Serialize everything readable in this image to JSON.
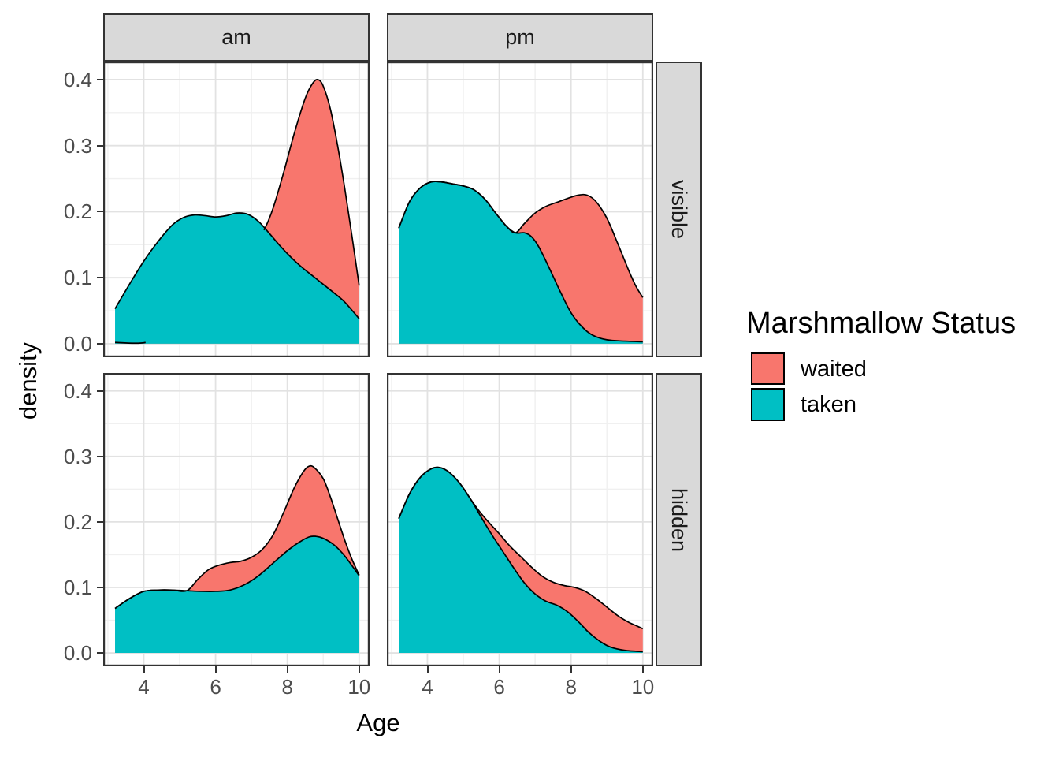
{
  "figure": {
    "x_axis": {
      "title": "Age",
      "tick_labels": [
        "4",
        "6",
        "8",
        "10"
      ],
      "tick_values": [
        4,
        6,
        8,
        10
      ],
      "minor_values": [
        3,
        5,
        7,
        9
      ],
      "domain": [
        2.87,
        10.29
      ]
    },
    "y_axis": {
      "title": "density",
      "tick_labels": [
        "0.0",
        "0.1",
        "0.2",
        "0.3",
        "0.4"
      ],
      "tick_values": [
        0,
        0.1,
        0.2,
        0.3,
        0.4
      ],
      "minor_values": [
        0.05,
        0.15,
        0.25,
        0.35
      ],
      "domain": [
        -0.0204,
        0.4274
      ]
    },
    "facets": {
      "cols": [
        "am",
        "pm"
      ],
      "rows": [
        "visible",
        "hidden"
      ]
    },
    "legend": {
      "title": "Marshmallow Status",
      "items": [
        {
          "label": "waited",
          "color": "#F8766D"
        },
        {
          "label": "taken",
          "color": "#00BFC4"
        }
      ]
    },
    "colors": {
      "waited": "#F8766D",
      "taken": "#00BFC4",
      "panel_border": "#333333",
      "grid_major": "#E2E2E2",
      "grid_minor": "#F0F0F0",
      "strip_fill": "#D9D9D9",
      "curve_stroke": "#000000",
      "tick_text": "#4D4D4D"
    }
  },
  "chart_data": [
    {
      "type": "density-area",
      "facet_col": "am",
      "facet_row": "visible",
      "series": [
        {
          "name": "waited",
          "points": [
            [
              3.2,
              0.002
            ],
            [
              4.05,
              0.002
            ],
            [
              4.6,
              0.02
            ],
            [
              5.2,
              0.052
            ],
            [
              5.8,
              0.085
            ],
            [
              6.4,
              0.118
            ],
            [
              6.9,
              0.145
            ],
            [
              7.2,
              0.163
            ],
            [
              7.35,
              0.172
            ],
            [
              7.6,
              0.205
            ],
            [
              7.9,
              0.26
            ],
            [
              8.2,
              0.32
            ],
            [
              8.5,
              0.372
            ],
            [
              8.7,
              0.394
            ],
            [
              8.85,
              0.4
            ],
            [
              9.0,
              0.39
            ],
            [
              9.2,
              0.355
            ],
            [
              9.4,
              0.3
            ],
            [
              9.6,
              0.235
            ],
            [
              9.8,
              0.163
            ],
            [
              10,
              0.088
            ]
          ]
        },
        {
          "name": "taken",
          "points": [
            [
              3.2,
              0.053
            ],
            [
              3.6,
              0.09
            ],
            [
              4.0,
              0.125
            ],
            [
              4.4,
              0.155
            ],
            [
              4.8,
              0.18
            ],
            [
              5.1,
              0.191
            ],
            [
              5.4,
              0.195
            ],
            [
              5.7,
              0.194
            ],
            [
              6.0,
              0.192
            ],
            [
              6.3,
              0.194
            ],
            [
              6.6,
              0.198
            ],
            [
              6.9,
              0.196
            ],
            [
              7.2,
              0.185
            ],
            [
              7.5,
              0.167
            ],
            [
              7.8,
              0.148
            ],
            [
              8.1,
              0.131
            ],
            [
              8.4,
              0.116
            ],
            [
              8.7,
              0.103
            ],
            [
              9.0,
              0.09
            ],
            [
              9.3,
              0.077
            ],
            [
              9.6,
              0.063
            ],
            [
              10,
              0.038
            ]
          ]
        }
      ]
    },
    {
      "type": "density-area",
      "facet_col": "pm",
      "facet_row": "visible",
      "series": [
        {
          "name": "waited",
          "points": [
            [
              3.2,
              0.175
            ],
            [
              3.5,
              0.215
            ],
            [
              3.8,
              0.236
            ],
            [
              4.1,
              0.245
            ],
            [
              4.4,
              0.245
            ],
            [
              4.7,
              0.242
            ],
            [
              5.0,
              0.239
            ],
            [
              5.3,
              0.233
            ],
            [
              5.6,
              0.219
            ],
            [
              5.9,
              0.198
            ],
            [
              6.2,
              0.178
            ],
            [
              6.45,
              0.168
            ],
            [
              6.7,
              0.182
            ],
            [
              7.0,
              0.198
            ],
            [
              7.3,
              0.208
            ],
            [
              7.6,
              0.214
            ],
            [
              7.9,
              0.22
            ],
            [
              8.2,
              0.225
            ],
            [
              8.45,
              0.225
            ],
            [
              8.7,
              0.215
            ],
            [
              9.0,
              0.19
            ],
            [
              9.3,
              0.152
            ],
            [
              9.6,
              0.112
            ],
            [
              9.8,
              0.088
            ],
            [
              10,
              0.07
            ]
          ]
        },
        {
          "name": "taken",
          "points": [
            [
              3.2,
              0.175
            ],
            [
              3.5,
              0.215
            ],
            [
              3.8,
              0.236
            ],
            [
              4.1,
              0.245
            ],
            [
              4.4,
              0.245
            ],
            [
              4.7,
              0.242
            ],
            [
              5.0,
              0.239
            ],
            [
              5.3,
              0.233
            ],
            [
              5.6,
              0.219
            ],
            [
              5.9,
              0.198
            ],
            [
              6.2,
              0.178
            ],
            [
              6.45,
              0.168
            ],
            [
              6.7,
              0.168
            ],
            [
              6.9,
              0.162
            ],
            [
              7.1,
              0.147
            ],
            [
              7.4,
              0.114
            ],
            [
              7.7,
              0.079
            ],
            [
              8.0,
              0.047
            ],
            [
              8.3,
              0.026
            ],
            [
              8.6,
              0.013
            ],
            [
              9.0,
              0.006
            ],
            [
              9.5,
              0.004
            ],
            [
              10,
              0.003
            ]
          ]
        }
      ]
    },
    {
      "type": "density-area",
      "facet_col": "am",
      "facet_row": "hidden",
      "series": [
        {
          "name": "waited",
          "points": [
            [
              3.2,
              0.068
            ],
            [
              3.6,
              0.083
            ],
            [
              4.0,
              0.094
            ],
            [
              4.4,
              0.096
            ],
            [
              4.8,
              0.096
            ],
            [
              5.2,
              0.095
            ],
            [
              5.5,
              0.112
            ],
            [
              5.8,
              0.127
            ],
            [
              6.1,
              0.134
            ],
            [
              6.4,
              0.138
            ],
            [
              6.7,
              0.14
            ],
            [
              7.0,
              0.146
            ],
            [
              7.3,
              0.158
            ],
            [
              7.6,
              0.18
            ],
            [
              7.9,
              0.215
            ],
            [
              8.2,
              0.253
            ],
            [
              8.45,
              0.277
            ],
            [
              8.6,
              0.285
            ],
            [
              8.75,
              0.283
            ],
            [
              9.0,
              0.266
            ],
            [
              9.2,
              0.238
            ],
            [
              9.4,
              0.205
            ],
            [
              9.6,
              0.172
            ],
            [
              9.8,
              0.143
            ],
            [
              10,
              0.119
            ]
          ]
        },
        {
          "name": "taken",
          "points": [
            [
              3.2,
              0.068
            ],
            [
              3.6,
              0.083
            ],
            [
              4.0,
              0.094
            ],
            [
              4.4,
              0.096
            ],
            [
              4.8,
              0.096
            ],
            [
              5.2,
              0.095
            ],
            [
              5.6,
              0.094
            ],
            [
              6.0,
              0.094
            ],
            [
              6.4,
              0.096
            ],
            [
              6.8,
              0.104
            ],
            [
              7.2,
              0.118
            ],
            [
              7.6,
              0.137
            ],
            [
              8.0,
              0.156
            ],
            [
              8.3,
              0.168
            ],
            [
              8.6,
              0.177
            ],
            [
              8.8,
              0.178
            ],
            [
              9.0,
              0.175
            ],
            [
              9.3,
              0.165
            ],
            [
              9.6,
              0.148
            ],
            [
              10,
              0.118
            ]
          ]
        }
      ]
    },
    {
      "type": "density-area",
      "facet_col": "pm",
      "facet_row": "hidden",
      "series": [
        {
          "name": "waited",
          "points": [
            [
              3.2,
              0.205
            ],
            [
              3.5,
              0.243
            ],
            [
              3.8,
              0.268
            ],
            [
              4.1,
              0.281
            ],
            [
              4.35,
              0.283
            ],
            [
              4.6,
              0.276
            ],
            [
              4.9,
              0.259
            ],
            [
              5.2,
              0.235
            ],
            [
              5.45,
              0.216
            ],
            [
              5.7,
              0.2
            ],
            [
              6.0,
              0.182
            ],
            [
              6.3,
              0.163
            ],
            [
              6.6,
              0.147
            ],
            [
              6.9,
              0.131
            ],
            [
              7.2,
              0.117
            ],
            [
              7.5,
              0.108
            ],
            [
              7.8,
              0.103
            ],
            [
              8.1,
              0.1
            ],
            [
              8.4,
              0.094
            ],
            [
              8.7,
              0.083
            ],
            [
              9.0,
              0.07
            ],
            [
              9.3,
              0.057
            ],
            [
              9.6,
              0.047
            ],
            [
              9.8,
              0.042
            ],
            [
              10,
              0.037
            ]
          ]
        },
        {
          "name": "taken",
          "points": [
            [
              3.2,
              0.205
            ],
            [
              3.5,
              0.243
            ],
            [
              3.8,
              0.268
            ],
            [
              4.1,
              0.281
            ],
            [
              4.35,
              0.283
            ],
            [
              4.6,
              0.276
            ],
            [
              4.9,
              0.259
            ],
            [
              5.2,
              0.235
            ],
            [
              5.5,
              0.207
            ],
            [
              5.8,
              0.18
            ],
            [
              6.1,
              0.155
            ],
            [
              6.4,
              0.13
            ],
            [
              6.7,
              0.107
            ],
            [
              7.0,
              0.09
            ],
            [
              7.3,
              0.079
            ],
            [
              7.6,
              0.073
            ],
            [
              7.9,
              0.063
            ],
            [
              8.2,
              0.048
            ],
            [
              8.5,
              0.031
            ],
            [
              8.8,
              0.018
            ],
            [
              9.1,
              0.009
            ],
            [
              9.5,
              0.004
            ],
            [
              10,
              0.002
            ]
          ]
        }
      ]
    }
  ]
}
